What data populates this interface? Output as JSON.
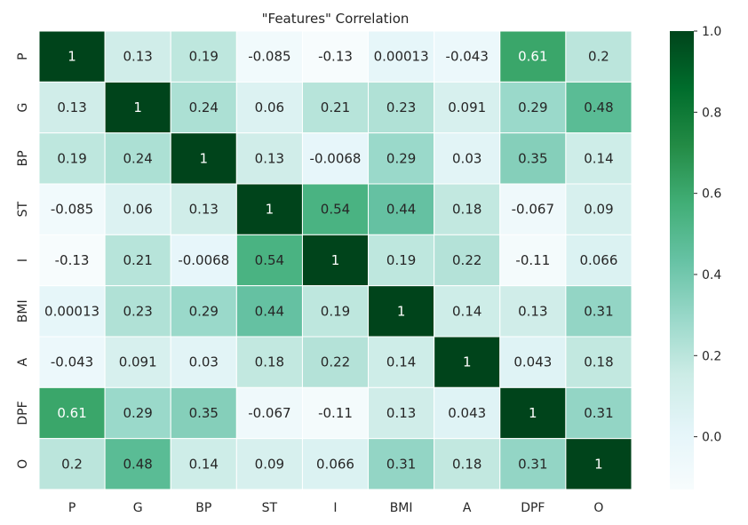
{
  "chart_data": {
    "type": "heatmap",
    "title": "\"Features\" Correlation",
    "xlabel": "",
    "ylabel": "",
    "x_labels": [
      "P",
      "G",
      "BP",
      "ST",
      "I",
      "BMI",
      "A",
      "DPF",
      "O"
    ],
    "y_labels": [
      "P",
      "G",
      "BP",
      "ST",
      "I",
      "BMI",
      "A",
      "DPF",
      "O"
    ],
    "values": [
      [
        1,
        0.13,
        0.19,
        -0.085,
        -0.13,
        0.00013,
        -0.043,
        0.61,
        0.2
      ],
      [
        0.13,
        1,
        0.24,
        0.06,
        0.21,
        0.23,
        0.091,
        0.29,
        0.48
      ],
      [
        0.19,
        0.24,
        1,
        0.13,
        -0.0068,
        0.29,
        0.03,
        0.35,
        0.14
      ],
      [
        -0.085,
        0.06,
        0.13,
        1,
        0.54,
        0.44,
        0.18,
        -0.067,
        0.09
      ],
      [
        -0.13,
        0.21,
        -0.0068,
        0.54,
        1,
        0.19,
        0.22,
        -0.11,
        0.066
      ],
      [
        0.00013,
        0.23,
        0.29,
        0.44,
        0.19,
        1,
        0.14,
        0.13,
        0.31
      ],
      [
        -0.043,
        0.091,
        0.03,
        0.18,
        0.22,
        0.14,
        1,
        0.043,
        0.18
      ],
      [
        0.61,
        0.29,
        0.35,
        -0.067,
        -0.11,
        0.13,
        0.043,
        1,
        0.31
      ],
      [
        0.2,
        0.48,
        0.14,
        0.09,
        0.066,
        0.31,
        0.18,
        0.31,
        1
      ]
    ],
    "labels": [
      [
        "1",
        "0.13",
        "0.19",
        "-0.085",
        "-0.13",
        "0.00013",
        "-0.043",
        "0.61",
        "0.2"
      ],
      [
        "0.13",
        "1",
        "0.24",
        "0.06",
        "0.21",
        "0.23",
        "0.091",
        "0.29",
        "0.48"
      ],
      [
        "0.19",
        "0.24",
        "1",
        "0.13",
        "-0.0068",
        "0.29",
        "0.03",
        "0.35",
        "0.14"
      ],
      [
        "-0.085",
        "0.06",
        "0.13",
        "1",
        "0.54",
        "0.44",
        "0.18",
        "-0.067",
        "0.09"
      ],
      [
        "-0.13",
        "0.21",
        "-0.0068",
        "0.54",
        "1",
        "0.19",
        "0.22",
        "-0.11",
        "0.066"
      ],
      [
        "0.00013",
        "0.23",
        "0.29",
        "0.44",
        "0.19",
        "1",
        "0.14",
        "0.13",
        "0.31"
      ],
      [
        "-0.043",
        "0.091",
        "0.03",
        "0.18",
        "0.22",
        "0.14",
        "1",
        "0.043",
        "0.18"
      ],
      [
        "0.61",
        "0.29",
        "0.35",
        "-0.067",
        "-0.11",
        "0.13",
        "0.043",
        "1",
        "0.31"
      ],
      [
        "0.2",
        "0.48",
        "0.14",
        "0.09",
        "0.066",
        "0.31",
        "0.18",
        "0.31",
        "1"
      ]
    ],
    "colorbar": {
      "colormap": "BuGn",
      "vmin": -0.13,
      "vmax": 1.0,
      "ticks": [
        0.0,
        0.2,
        0.4,
        0.6,
        0.8,
        1.0
      ],
      "tick_labels": [
        "0.0",
        "0.2",
        "0.4",
        "0.6",
        "0.8",
        "1.0"
      ]
    },
    "grid": false,
    "cell_border_color": "#ffffff"
  }
}
